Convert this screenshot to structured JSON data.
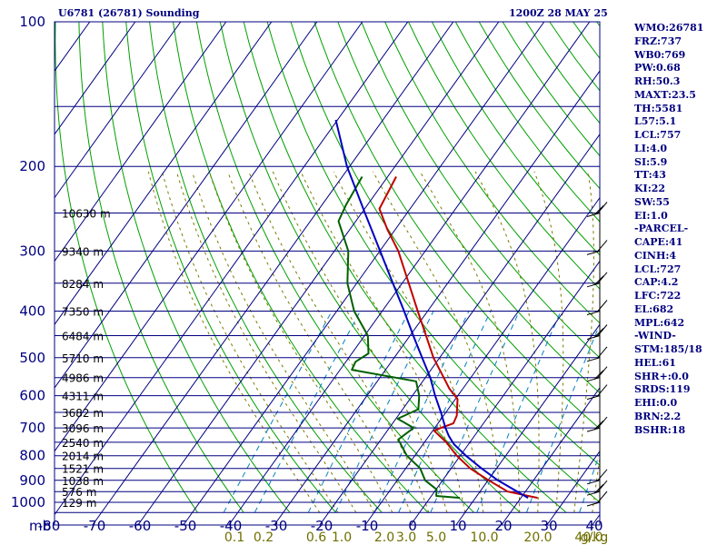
{
  "header": {
    "title": "U6781 (26781) Sounding",
    "timestamp": "1200Z 28 MAY 25"
  },
  "stats": [
    "WMO:26781",
    "FRZ:737",
    "WB0:769",
    "PW:0.68",
    "RH:50.3",
    "MAXT:23.5",
    "TH:5581",
    "L57:5.1",
    "LCL:757",
    "LI:4.0",
    "SI:5.9",
    "TT:43",
    "KI:22",
    "SW:55",
    "EI:1.0",
    "-PARCEL-",
    "CAPE:41",
    "CINH:4",
    "LCL:727",
    "CAP:4.2",
    "LFC:722",
    "EL:682",
    "MPL:642",
    "-WIND-",
    "STM:185/18",
    "HEL:61",
    "SHR+:0.0",
    "SRDS:119",
    "EHI:0.0",
    "BRN:2.2",
    "BSHR:18"
  ],
  "chart_data": {
    "type": "line",
    "diagram": "skew-T log-p",
    "x_unit_label": "mb",
    "temperature_ticks": [
      "-80",
      "-70",
      "-60",
      "-50",
      "-40",
      "-30",
      "-20",
      "-10",
      "0",
      "10",
      "20",
      "30",
      "40"
    ],
    "pressure_ticks": [
      "100",
      "200",
      "300",
      "400",
      "500",
      "600",
      "700",
      "800",
      "900",
      "1000"
    ],
    "mixing_ratio_labels": [
      "0.1",
      "0.2",
      "0.6",
      "1.0",
      "2.0",
      "3.0",
      "5.0",
      "10.0",
      "20.0",
      "40.0",
      "g/kg"
    ],
    "mixing_ratio_values": [
      0.1,
      0.2,
      0.6,
      1.0,
      2.0,
      3.0,
      5.0,
      10.0,
      20.0,
      40.0
    ],
    "height_labels": [
      {
        "p": 250,
        "label": "10630 m"
      },
      {
        "p": 300,
        "label": "9340 m"
      },
      {
        "p": 350,
        "label": "8284 m"
      },
      {
        "p": 400,
        "label": "7350 m"
      },
      {
        "p": 450,
        "label": "6484 m"
      },
      {
        "p": 500,
        "label": "5710 m"
      },
      {
        "p": 550,
        "label": "4986 m"
      },
      {
        "p": 600,
        "label": "4311 m"
      },
      {
        "p": 650,
        "label": "3682 m"
      },
      {
        "p": 700,
        "label": "3096 m"
      },
      {
        "p": 750,
        "label": "2540 m"
      },
      {
        "p": 800,
        "label": "2014 m"
      },
      {
        "p": 850,
        "label": "1521 m"
      },
      {
        "p": 900,
        "label": "1038 m"
      },
      {
        "p": 950,
        "label": "576 m"
      },
      {
        "p": 1000,
        "label": "129 m"
      }
    ],
    "p_range": [
      100,
      1050
    ],
    "t_range_at_bottom": [
      -80,
      40
    ],
    "series": [
      {
        "key": "temperature",
        "color": "#c00000",
        "points": [
          [
            979,
            25.6
          ],
          [
            950,
            18.0
          ],
          [
            900,
            12.0
          ],
          [
            850,
            6.0
          ],
          [
            800,
            1.0
          ],
          [
            750,
            -3.5
          ],
          [
            710,
            -8.0
          ],
          [
            700,
            -7.0
          ],
          [
            685,
            -5.0
          ],
          [
            660,
            -5.5
          ],
          [
            640,
            -6.5
          ],
          [
            610,
            -8.0
          ],
          [
            580,
            -11.5
          ],
          [
            560,
            -13.5
          ],
          [
            500,
            -20.0
          ],
          [
            400,
            -31.0
          ],
          [
            350,
            -37.5
          ],
          [
            300,
            -45.0
          ],
          [
            270,
            -51.0
          ],
          [
            245,
            -56.0
          ],
          [
            210,
            -57.5
          ]
        ]
      },
      {
        "key": "dewpoint",
        "color": "#006000",
        "points": [
          [
            979,
            8.5
          ],
          [
            970,
            3.0
          ],
          [
            940,
            2.0
          ],
          [
            900,
            -2.0
          ],
          [
            850,
            -5.0
          ],
          [
            800,
            -10.0
          ],
          [
            740,
            -14.5
          ],
          [
            700,
            -13.0
          ],
          [
            670,
            -18.0
          ],
          [
            640,
            -15.0
          ],
          [
            600,
            -17.0
          ],
          [
            560,
            -20.0
          ],
          [
            530,
            -36.0
          ],
          [
            510,
            -36.5
          ],
          [
            490,
            -35.0
          ],
          [
            450,
            -38.0
          ],
          [
            400,
            -45.0
          ],
          [
            350,
            -51.0
          ],
          [
            300,
            -56.0
          ],
          [
            260,
            -63.0
          ],
          [
            240,
            -64.0
          ],
          [
            210,
            -65.0
          ]
        ]
      },
      {
        "key": "parcel",
        "color": "#0000c0",
        "points": [
          [
            979,
            23.5
          ],
          [
            900,
            14.0
          ],
          [
            850,
            8.5
          ],
          [
            800,
            3.0
          ],
          [
            757,
            -1.5
          ],
          [
            727,
            -4.0
          ],
          [
            700,
            -6.0
          ],
          [
            650,
            -9.5
          ],
          [
            600,
            -13.5
          ],
          [
            550,
            -17.5
          ],
          [
            500,
            -22.5
          ],
          [
            450,
            -28.0
          ],
          [
            400,
            -34.0
          ],
          [
            350,
            -41.0
          ],
          [
            300,
            -49.0
          ],
          [
            250,
            -58.5
          ],
          [
            200,
            -70.0
          ],
          [
            160,
            -80.0
          ]
        ]
      }
    ],
    "grid": true,
    "colors": {
      "frame": "#000080",
      "isotherm": "#000080",
      "dry_adiabat": "#00a000",
      "moist_adiabat": "#7a7a00",
      "mixing_ratio": "#0080c0",
      "temperature": "#c00000",
      "dewpoint": "#006000",
      "parcel": "#0000c0",
      "wind": "#000000"
    }
  }
}
